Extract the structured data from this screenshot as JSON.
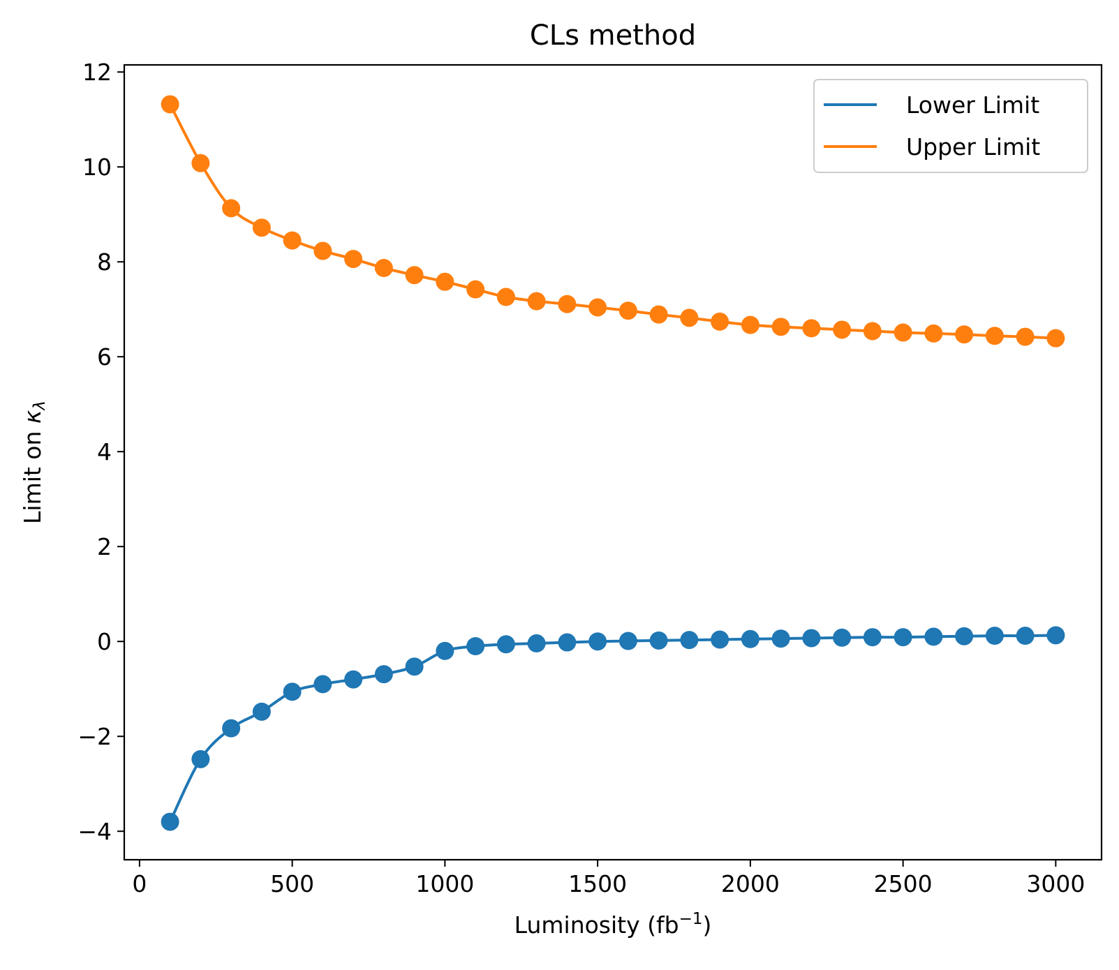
{
  "chart_data": {
    "type": "line",
    "title": "CLs method",
    "xlabel": {
      "base": "Luminosity (fb",
      "sup": "−1",
      "tail": ")"
    },
    "ylabel": {
      "base": "Limit on ",
      "kappa": "κ",
      "sub": "λ"
    },
    "xlim": [
      -50,
      3150
    ],
    "ylim": [
      -4.6,
      12.15
    ],
    "xticks": [
      0,
      500,
      1000,
      1500,
      2000,
      2500,
      3000
    ],
    "xtick_labels": [
      "0",
      "500",
      "1000",
      "1500",
      "2000",
      "2500",
      "3000"
    ],
    "yticks": [
      -4,
      -2,
      0,
      2,
      4,
      6,
      8,
      10,
      12
    ],
    "ytick_labels": [
      "−4",
      "−2",
      "0",
      "2",
      "4",
      "6",
      "8",
      "10",
      "12"
    ],
    "grid": false,
    "legend_position": "top-right",
    "x": [
      100,
      200,
      300,
      400,
      500,
      600,
      700,
      800,
      900,
      1000,
      1100,
      1200,
      1300,
      1400,
      1500,
      1600,
      1700,
      1800,
      1900,
      2000,
      2100,
      2200,
      2300,
      2400,
      2500,
      2600,
      2700,
      2800,
      2900,
      3000
    ],
    "series": [
      {
        "name": "Lower Limit",
        "color": "#1f77b4",
        "values": [
          -3.8,
          -2.48,
          -1.83,
          -1.48,
          -1.06,
          -0.9,
          -0.8,
          -0.69,
          -0.53,
          -0.2,
          -0.1,
          -0.06,
          -0.04,
          -0.02,
          0.0,
          0.01,
          0.02,
          0.03,
          0.04,
          0.05,
          0.06,
          0.07,
          0.08,
          0.09,
          0.09,
          0.1,
          0.11,
          0.12,
          0.12,
          0.13
        ]
      },
      {
        "name": "Upper Limit",
        "color": "#ff7f0e",
        "values": [
          11.32,
          10.08,
          9.13,
          8.72,
          8.45,
          8.23,
          8.06,
          7.87,
          7.72,
          7.58,
          7.42,
          7.26,
          7.17,
          7.11,
          7.04,
          6.97,
          6.89,
          6.82,
          6.74,
          6.67,
          6.63,
          6.6,
          6.57,
          6.54,
          6.51,
          6.49,
          6.47,
          6.44,
          6.42,
          6.39
        ]
      }
    ]
  }
}
